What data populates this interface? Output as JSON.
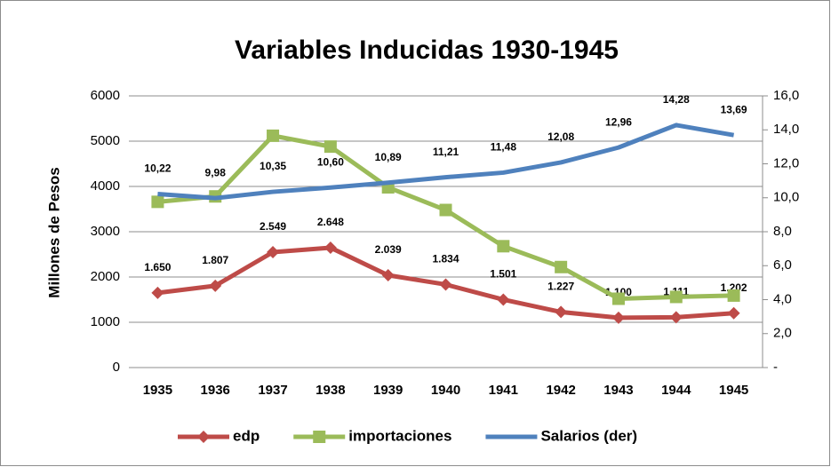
{
  "chart_data": {
    "type": "line",
    "title": "Variables Inducidas 1930-1945",
    "y_label": "Millones de Pesos",
    "categories": [
      "1935",
      "1936",
      "1937",
      "1938",
      "1939",
      "1940",
      "1941",
      "1942",
      "1943",
      "1944",
      "1945"
    ],
    "ylim": [
      0,
      6000
    ],
    "yticks": [
      0,
      1000,
      2000,
      3000,
      4000,
      5000,
      6000
    ],
    "y2lim": [
      0,
      16
    ],
    "y2ticks": [
      {
        "value": 0,
        "label": "-"
      },
      {
        "value": 2,
        "label": "2,0"
      },
      {
        "value": 4,
        "label": "4,0"
      },
      {
        "value": 6,
        "label": "6,0"
      },
      {
        "value": 8,
        "label": "8,0"
      },
      {
        "value": 10,
        "label": "10,0"
      },
      {
        "value": 12,
        "label": "12,0"
      },
      {
        "value": 14,
        "label": "14,0"
      },
      {
        "value": 16,
        "label": "16,0"
      }
    ],
    "grid": true,
    "legend": "bottom",
    "series": [
      {
        "name": "edp",
        "color": "#be4b48",
        "marker": "diamond",
        "values": [
          1650,
          1807,
          2549,
          2648,
          2039,
          1834,
          1501,
          1227,
          1100,
          1111,
          1202
        ],
        "value_labels": [
          "1.650",
          "1.807",
          "2.549",
          "2.648",
          "2.039",
          "1.834",
          "1.501",
          "1.227",
          "1.100",
          "1.111",
          "1.202"
        ]
      },
      {
        "name": "importaciones",
        "color": "#9bbb59",
        "marker": "square",
        "values": [
          3660,
          3780,
          5120,
          4880,
          3980,
          3480,
          2680,
          2220,
          1520,
          1560,
          1590
        ]
      },
      {
        "name": "Salarios (der)",
        "color": "#4f81bd",
        "axis": "y2",
        "values": [
          10.22,
          9.98,
          10.35,
          10.6,
          10.89,
          11.21,
          11.48,
          12.08,
          12.96,
          14.28,
          13.69
        ],
        "value_labels": [
          "10,22",
          "9,98",
          "10,35",
          "10,60",
          "10,89",
          "11,21",
          "11,48",
          "12,08",
          "12,96",
          "14,28",
          "13,69"
        ]
      }
    ]
  }
}
